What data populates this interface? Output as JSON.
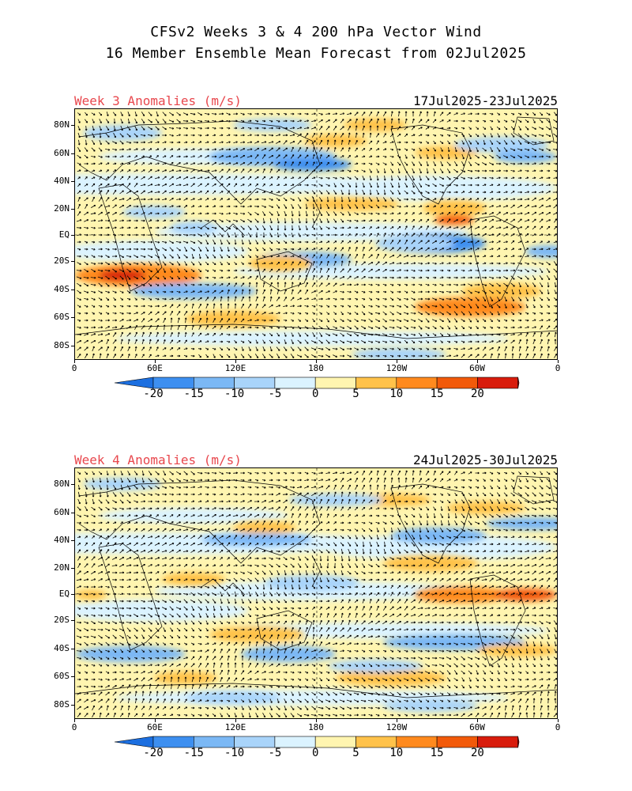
{
  "header": {
    "line1": "CFSv2 Weeks 3 & 4 200 hPa Vector Wind",
    "line2": "16 Member Ensemble Mean Forecast from 02Jul2025"
  },
  "panels": [
    {
      "label": "Week 3 Anomalies (m/s)",
      "dates": "17Jul2025-23Jul2025"
    },
    {
      "label": "Week 4 Anomalies (m/s)",
      "dates": "24Jul2025-30Jul2025"
    }
  ],
  "lat_labels": [
    "80N",
    "60N",
    "40N",
    "20N",
    "EQ",
    "20S",
    "40S",
    "60S",
    "80S"
  ],
  "lon_labels": [
    "0",
    "60E",
    "120E",
    "180",
    "120W",
    "60W",
    "0"
  ],
  "colorbar": {
    "labels": [
      "-20",
      "-15",
      "-10",
      "-5",
      "0",
      "5",
      "10",
      "15",
      "20"
    ],
    "colors": [
      "#1c6fe0",
      "#3d8ff0",
      "#7bb8f5",
      "#a9d4fa",
      "#dbf3ff",
      "#fff5b0",
      "#ffc24a",
      "#ff8a1e",
      "#f25a0a",
      "#d81c0c",
      "#a00000"
    ]
  }
}
